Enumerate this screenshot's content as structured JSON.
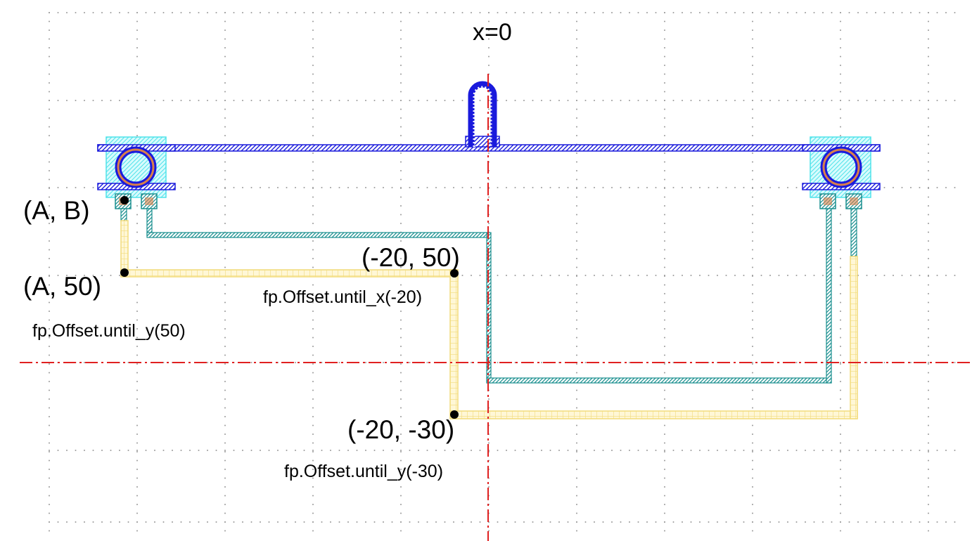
{
  "axis_labels": {
    "x0": "x=0"
  },
  "points": {
    "ab": "(A, B)",
    "a50": "(A, 50)",
    "m20_50": "(-20, 50)",
    "m20_m30": "(-20, -30)"
  },
  "annotations": {
    "until_y_50": "fp.Offset.until_y(50)",
    "until_x_m20": "fp.Offset.until_x(-20)",
    "until_y_m30": "fp.Offset.until_y(-30)"
  },
  "colors": {
    "guide_line": "#e02020",
    "waveguide_blue": "#1a1adc",
    "cladding_cyan": "#7ef3f7",
    "teal_route": "#1a8f8f",
    "yellow_route": "#f2dc7c",
    "ring_orange": "#d9804a"
  }
}
